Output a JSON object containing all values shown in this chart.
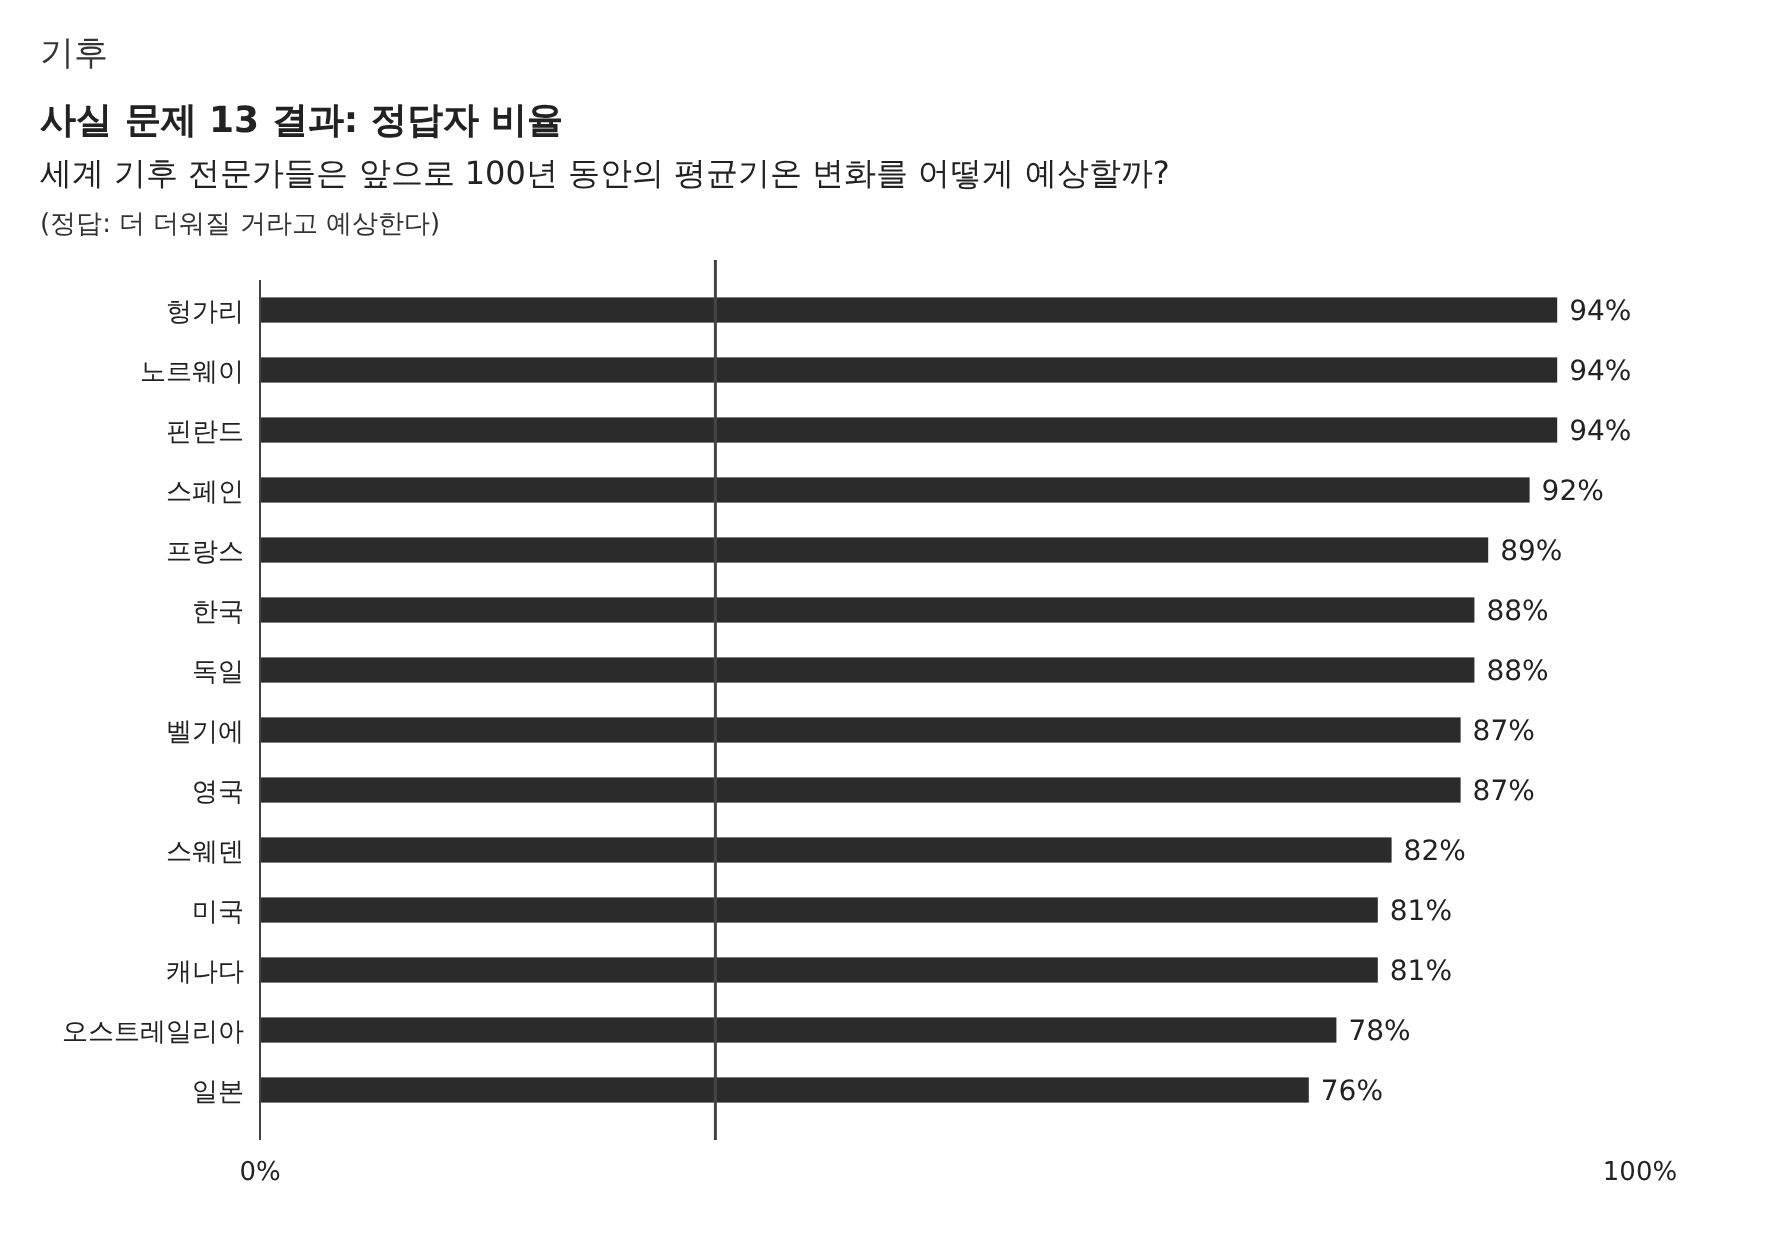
{
  "chart_data": {
    "type": "bar",
    "orientation": "horizontal",
    "title": "사실 문제 13 결과: 정답자 비율",
    "subtitle": "세계 기후 전문가들은 앞으로 100년 동안의 평균기온 변화를 어떻게 예상할까?",
    "annotations": [
      "기후",
      "(정답: 더 더워질 거라고 예상한다)"
    ],
    "categories": [
      "헝가리",
      "노르웨이",
      "핀란드",
      "스페인",
      "프랑스",
      "한국",
      "독일",
      "벨기에",
      "영국",
      "스웨덴",
      "미국",
      "캐나다",
      "오스트레일리아",
      "일본"
    ],
    "values": [
      94,
      94,
      94,
      92,
      89,
      88,
      88,
      87,
      87,
      82,
      81,
      81,
      78,
      76
    ],
    "value_labels": [
      "94%",
      "94%",
      "94%",
      "92%",
      "89%",
      "88%",
      "88%",
      "87%",
      "87%",
      "82%",
      "81%",
      "81%",
      "78%",
      "76%"
    ],
    "color": "#2b2b2b",
    "xlim": [
      0,
      100
    ],
    "xticks": [
      {
        "value": 0,
        "label": "0%"
      },
      {
        "value": 100,
        "label": "100%"
      }
    ],
    "ref_lines": [
      {
        "axis": "x",
        "value": 33,
        "color": "#444444"
      }
    ]
  }
}
